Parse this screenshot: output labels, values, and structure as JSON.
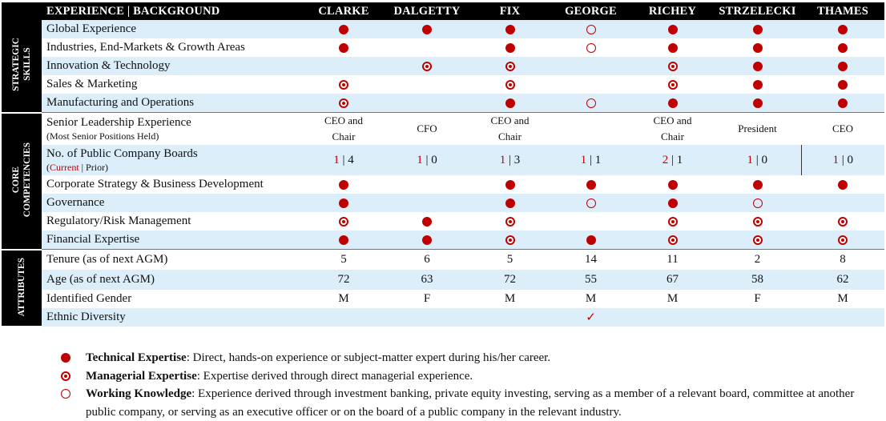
{
  "header": {
    "label": "EXPERIENCE | BACKGROUND",
    "directors": [
      "CLARKE",
      "DALGETTY",
      "FIX",
      "GEORGE",
      "RICHEY",
      "STRZELECKI",
      "THAMES"
    ]
  },
  "categories": {
    "strategic": {
      "line1": "STRATEGIC",
      "line2": "SKILLS"
    },
    "core": {
      "line1": "CORE",
      "line2": "COMPETENCIES"
    },
    "attributes": {
      "line1": "ATTRIBUTES"
    }
  },
  "rows": {
    "global": {
      "label": "Global Experience",
      "values": [
        "technical",
        "technical",
        "technical",
        "working",
        "technical",
        "technical",
        "technical"
      ]
    },
    "industries": {
      "label": "Industries, End-Markets & Growth Areas",
      "values": [
        "technical",
        "",
        "technical",
        "working",
        "technical",
        "technical",
        "technical"
      ]
    },
    "innovation": {
      "label": "Innovation & Technology",
      "values": [
        "",
        "managerial",
        "managerial",
        "",
        "managerial",
        "technical",
        "technical"
      ]
    },
    "sales": {
      "label": "Sales & Marketing",
      "values": [
        "managerial",
        "",
        "managerial",
        "",
        "managerial",
        "technical",
        "technical"
      ]
    },
    "manufacturing": {
      "label": "Manufacturing and Operations",
      "values": [
        "managerial",
        "",
        "technical",
        "working",
        "technical",
        "technical",
        "technical"
      ]
    },
    "leadership": {
      "label": "Senior Leadership Experience",
      "sublabel": "(Most Senior Positions Held)",
      "values": [
        {
          "l1": "CEO and",
          "l2": "Chair"
        },
        {
          "l1": "CFO",
          "l2": ""
        },
        {
          "l1": "CEO and",
          "l2": "Chair"
        },
        {
          "l1": "",
          "l2": ""
        },
        {
          "l1": "CEO and",
          "l2": "Chair"
        },
        {
          "l1": "President",
          "l2": ""
        },
        {
          "l1": "CEO",
          "l2": ""
        }
      ]
    },
    "boards": {
      "label": "No. of Public Company Boards",
      "sub_open": "(",
      "sub_current": "Current",
      "sub_rest": " | Prior)",
      "values": [
        {
          "current": "1",
          "prior": "4"
        },
        {
          "current": "1",
          "prior": "0"
        },
        {
          "current": "1",
          "prior": "3"
        },
        {
          "current": "1",
          "prior": "1"
        },
        {
          "current": "2",
          "prior": "1"
        },
        {
          "current": "1",
          "prior": "0"
        },
        {
          "current": "1",
          "prior": "0"
        }
      ]
    },
    "strategy": {
      "label": "Corporate Strategy & Business Development",
      "values": [
        "technical",
        "",
        "technical",
        "technical",
        "technical",
        "technical",
        "technical"
      ]
    },
    "governance": {
      "label": "Governance",
      "values": [
        "technical",
        "",
        "technical",
        "working",
        "technical",
        "working",
        ""
      ]
    },
    "regulatory": {
      "label": "Regulatory/Risk Management",
      "values": [
        "managerial",
        "technical",
        "managerial",
        "",
        "managerial",
        "managerial",
        "managerial"
      ]
    },
    "financial": {
      "label": "Financial Expertise",
      "values": [
        "technical",
        "technical",
        "managerial",
        "technical",
        "managerial",
        "managerial",
        "managerial"
      ]
    },
    "tenure": {
      "label": "Tenure (as of next AGM)",
      "values": [
        "5",
        "6",
        "5",
        "14",
        "11",
        "2",
        "8"
      ]
    },
    "age": {
      "label": "Age (as of next AGM)",
      "values": [
        "72",
        "63",
        "72",
        "55",
        "67",
        "58",
        "62"
      ]
    },
    "gender": {
      "label": "Identified Gender",
      "values": [
        "M",
        "F",
        "M",
        "M",
        "M",
        "F",
        "M"
      ]
    },
    "ethnic": {
      "label": "Ethnic Diversity",
      "values": [
        "",
        "",
        "",
        "✓",
        "",
        "",
        ""
      ]
    }
  },
  "legend": {
    "technical": {
      "title": "Technical Expertise",
      "text": ": Direct, hands-on experience or subject-matter expert during his/her career."
    },
    "managerial": {
      "title": "Managerial Expertise",
      "text": ": Expertise derived through direct managerial experience."
    },
    "working": {
      "title": "Working Knowledge",
      "text": ": Experience derived through investment banking, private equity investing, serving as a member of a relevant board, committee at another public company, or serving as an executive officer or on the board of a public company in the relevant industry."
    }
  },
  "colors": {
    "accent": "#c00000",
    "row_band": "#dceefa",
    "header_bg": "#000000"
  }
}
